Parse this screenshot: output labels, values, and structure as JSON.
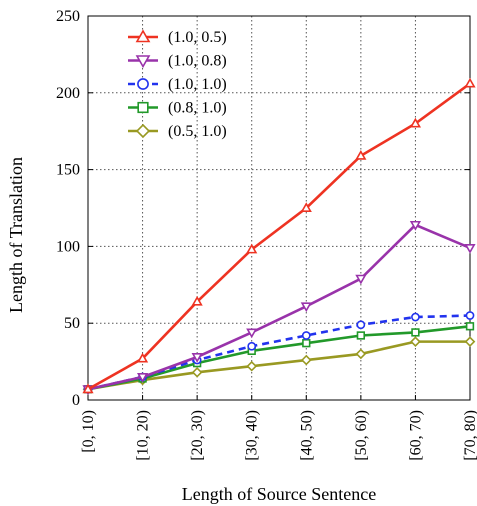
{
  "chart_data": {
    "type": "line",
    "xlabel": "Length of Source Sentence",
    "ylabel": "Length of Translation",
    "categories": [
      "[0, 10)",
      "[10, 20)",
      "[20, 30)",
      "[30, 40)",
      "[40, 50)",
      "[50, 60)",
      "[60, 70)",
      "[70, 80)"
    ],
    "ylim": [
      0,
      250
    ],
    "yticks": [
      "0",
      "50",
      "100",
      "150",
      "200",
      "250"
    ],
    "grid": true,
    "legend": "top-left",
    "series": [
      {
        "name": "(1.0, 0.5)",
        "color": "#ee3322",
        "marker": "triangle-up",
        "dash": false,
        "values": [
          7,
          27,
          64,
          98,
          125,
          159,
          180,
          206
        ]
      },
      {
        "name": "(1.0, 0.8)",
        "color": "#9933aa",
        "marker": "triangle-down",
        "dash": false,
        "values": [
          7,
          15,
          28,
          44,
          61,
          79,
          114,
          99
        ]
      },
      {
        "name": "(1.0, 1.0)",
        "color": "#2233ee",
        "marker": "circle",
        "dash": true,
        "values": [
          7,
          15,
          26,
          35,
          42,
          49,
          54,
          55
        ]
      },
      {
        "name": "(0.8, 1.0)",
        "color": "#22992a",
        "marker": "square",
        "dash": false,
        "values": [
          7,
          14,
          24,
          32,
          37,
          42,
          44,
          48
        ]
      },
      {
        "name": "(0.5, 1.0)",
        "color": "#999922",
        "marker": "diamond",
        "dash": false,
        "values": [
          7,
          13,
          18,
          22,
          26,
          30,
          38,
          38
        ]
      }
    ]
  }
}
